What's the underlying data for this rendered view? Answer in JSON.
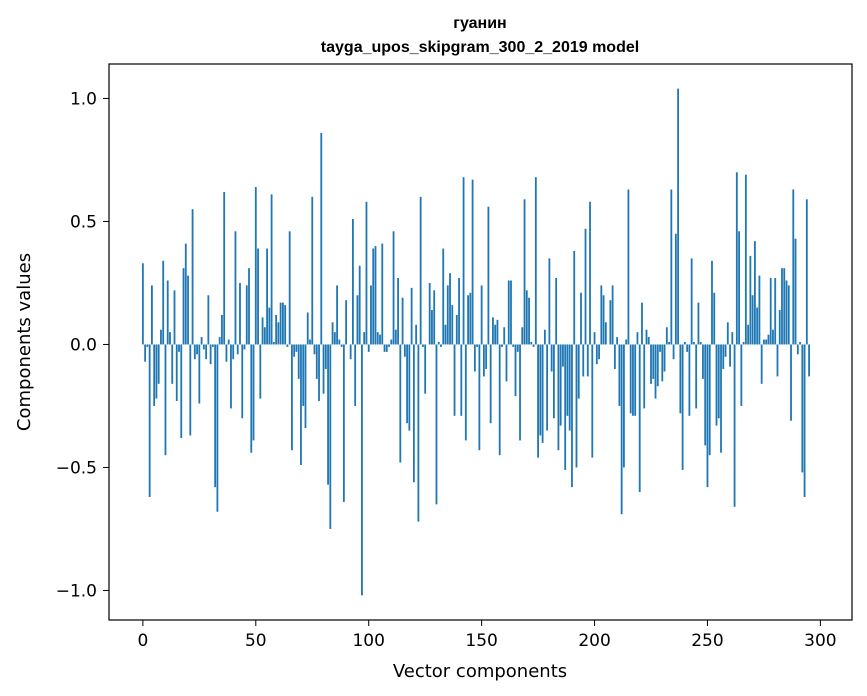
{
  "chart_data": {
    "type": "bar",
    "title": "гуанин",
    "subtitle": "tayga_upos_skipgram_300_2_2019 model",
    "xlabel": "Vector components",
    "ylabel": "Components values",
    "xlim": [
      -15,
      314
    ],
    "ylim": [
      -1.12,
      1.14
    ],
    "xticks": [
      0,
      50,
      100,
      150,
      200,
      250,
      300
    ],
    "xtick_labels": [
      "0",
      "50",
      "100",
      "150",
      "200",
      "250",
      "300"
    ],
    "yticks": [
      -1.0,
      -0.5,
      0.0,
      0.5,
      1.0
    ],
    "ytick_labels": [
      "−1.0",
      "−0.5",
      "0.0",
      "0.5",
      "1.0"
    ],
    "bar_color": "#1f77b4",
    "grid": false,
    "values": [
      0.33,
      -0.07,
      -0.01,
      -0.62,
      0.24,
      -0.25,
      -0.22,
      -0.16,
      0.06,
      0.34,
      -0.45,
      0.26,
      0.05,
      -0.16,
      0.22,
      -0.23,
      -0.03,
      -0.38,
      0.31,
      0.41,
      0.28,
      -0.37,
      0.55,
      -0.06,
      -0.04,
      -0.24,
      0.03,
      -0.02,
      -0.06,
      0.2,
      -0.08,
      -0.01,
      -0.58,
      -0.68,
      0.03,
      0.12,
      0.62,
      -0.07,
      0.02,
      -0.26,
      -0.06,
      0.46,
      -0.04,
      0.25,
      -0.3,
      -0.02,
      0.24,
      0.31,
      -0.44,
      -0.39,
      0.64,
      0.39,
      -0.22,
      0.11,
      0.07,
      0.39,
      0.15,
      0.61,
      0.01,
      0.12,
      0.09,
      0.17,
      0.17,
      0.16,
      -0.01,
      0.46,
      -0.43,
      -0.05,
      -0.03,
      -0.14,
      -0.49,
      -0.25,
      -0.34,
      0.13,
      0.02,
      0.6,
      -0.04,
      -0.14,
      -0.23,
      0.86,
      -0.2,
      -0.1,
      -0.57,
      -0.75,
      0.09,
      0.05,
      0.24,
      0.02,
      -0.01,
      -0.64,
      0.18,
      0,
      -0.06,
      0.51,
      -0.25,
      0.2,
      0.32,
      -1.02,
      0.05,
      0.58,
      -0.03,
      0.24,
      0.39,
      0.4,
      0.05,
      0.04,
      0.41,
      -0.03,
      -0.03,
      -0.01,
      0.02,
      0.46,
      0.06,
      0.27,
      -0.48,
      0.19,
      -0.05,
      -0.32,
      -0.35,
      0.23,
      -0.56,
      0.08,
      -0.72,
      0.6,
      -0.01,
      -0.2,
      0,
      0.25,
      0.14,
      0.22,
      -0.65,
      0.01,
      -0.01,
      0.39,
      0.08,
      0.24,
      0.29,
      0.16,
      -0.29,
      0.12,
      0.27,
      -0.29,
      0.68,
      -0.39,
      0.2,
      0.21,
      0.67,
      -0.11,
      -0.01,
      -0.43,
      0.24,
      -0.13,
      -0.1,
      0.56,
      -0.32,
      0.11,
      0.08,
      0.1,
      -0.45,
      -0.01,
      0.07,
      -0.15,
      0.26,
      0.26,
      -0.01,
      -0.21,
      -0.03,
      -0.39,
      0.07,
      0.59,
      0.22,
      0.19,
      0.01,
      -0.01,
      0.68,
      -0.46,
      -0.37,
      -0.4,
      0.06,
      -0.35,
      0.35,
      -0.11,
      -0.3,
      0.27,
      -0.43,
      -0.33,
      -0.09,
      -0.51,
      -0.29,
      -0.35,
      -0.58,
      0.38,
      -0.5,
      -0.22,
      0.21,
      -0.13,
      0.47,
      -0.13,
      0.58,
      -0.46,
      0.05,
      -0.08,
      -0.06,
      0.24,
      0.2,
      0.09,
      0,
      0.18,
      0.24,
      -0.1,
      0.03,
      -0.25,
      -0.69,
      -0.5,
      0.02,
      0.63,
      -0.28,
      -0.29,
      -0.29,
      0.05,
      -0.6,
      0.17,
      -0.26,
      0.06,
      0.03,
      -0.16,
      -0.14,
      -0.22,
      -0.17,
      -0.03,
      -0.15,
      -0.11,
      0.07,
      0.01,
      0.63,
      -0.06,
      0.45,
      1.04,
      -0.28,
      -0.51,
      0.01,
      -0.03,
      -0.29,
      0.35,
      0.01,
      -0.26,
      0.17,
      0.01,
      -0.14,
      -0.41,
      -0.58,
      -0.45,
      0.34,
      0.21,
      -0.33,
      -0.3,
      -0.44,
      -0.1,
      -0.05,
      0.09,
      -0.09,
      0.05,
      -0.66,
      0.7,
      0.46,
      -0.25,
      0.01,
      0.69,
      0.08,
      0.36,
      0.2,
      0.42,
      0.15,
      0.28,
      -0.16,
      0.02,
      0.02,
      0.04,
      0.27,
      0.06,
      0.27,
      -0.13,
      0.14,
      0.31,
      0.31,
      0.26,
      0.24,
      -0.31,
      0.63,
      0.43,
      -0.04,
      0.01,
      -0.52,
      -0.62,
      0.59,
      -0.13
    ],
    "annotation_value_max": 1.04,
    "annotation_value_min": -1.02
  }
}
